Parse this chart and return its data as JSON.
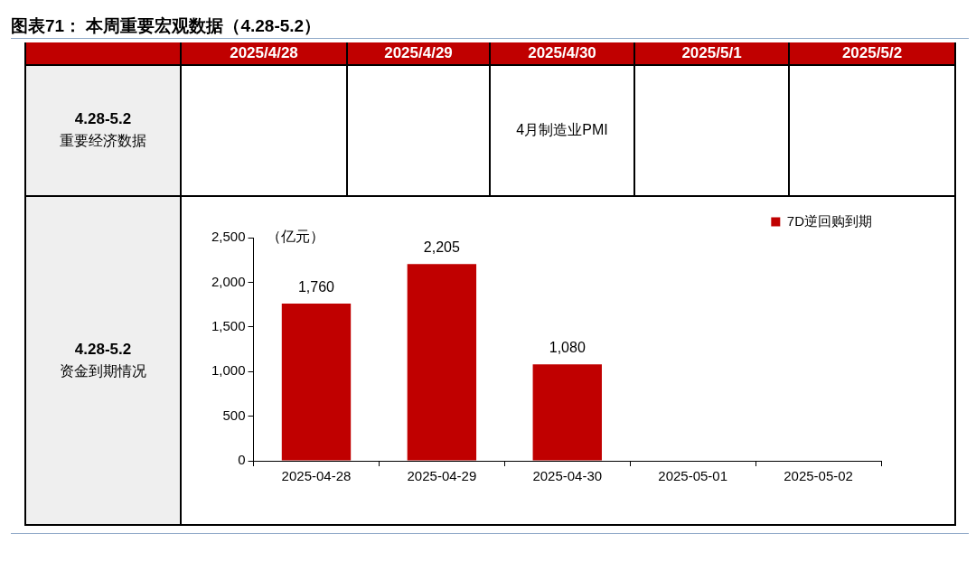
{
  "chart_data": {
    "type": "bar",
    "title": "图表71： 本周重要宏观数据（4.28-5.2）",
    "ylabel": "（亿元）",
    "annotations": [
      "2025/4/28",
      "2025/4/29",
      "2025/4/30",
      "2025/5/1",
      "2025/5/2",
      "4.28-5.2",
      "重要经济数据",
      "4月制造业PMI",
      "4.28-5.2",
      "资金到期情况"
    ],
    "categories": [
      "2025-04-28",
      "2025-04-29",
      "2025-04-30",
      "2025-05-01",
      "2025-05-02"
    ],
    "series": [
      {
        "name": "7D逆回购到期",
        "color": "#c00000",
        "values": [
          1760,
          2205,
          1080,
          null,
          null
        ],
        "value_labels": [
          "1,760",
          "2,205",
          "1,080",
          null,
          null
        ]
      }
    ],
    "ylim": [
      0,
      2500
    ],
    "yticks": [
      0,
      500,
      {
        "value": 1000,
        "label": "1,000"
      },
      {
        "value": 1500,
        "label": "1,500"
      },
      {
        "value": 2000,
        "label": "2,000"
      },
      {
        "value": 2500,
        "label": "2,500"
      }
    ],
    "grid": false,
    "legend": "top right"
  }
}
